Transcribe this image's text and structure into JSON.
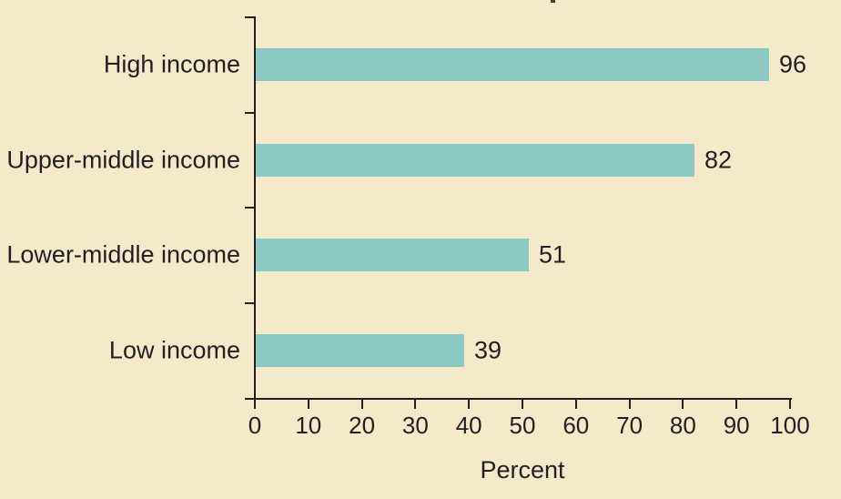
{
  "figure": {
    "background_color": "#F4E9CA",
    "bar_color": "#8CC9C2",
    "ink_color": "#231F20"
  },
  "chart_data": {
    "type": "bar",
    "orientation": "horizontal",
    "categories": [
      "High income",
      "Upper-middle income",
      "Lower-middle income",
      "Low income"
    ],
    "values": [
      96,
      82,
      51,
      39
    ],
    "value_labels": [
      "96",
      "82",
      "51",
      "39"
    ],
    "xlabel": "Percent",
    "xlim": [
      0,
      100
    ],
    "x_ticks": [
      0,
      10,
      20,
      30,
      40,
      50,
      60,
      70,
      80,
      90,
      100
    ],
    "grid": false,
    "legend": false
  }
}
